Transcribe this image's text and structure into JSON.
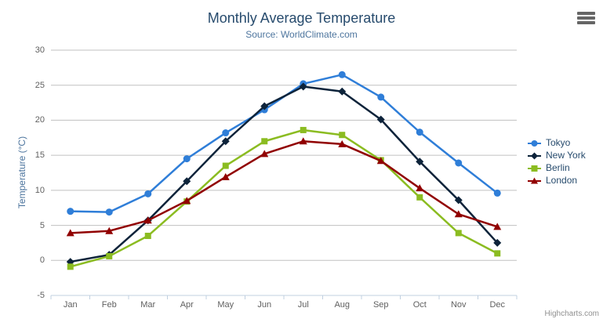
{
  "credits": "Highcharts.com",
  "icons": {
    "context_menu": "hamburger-menu-icon"
  },
  "colors": {
    "title_text": "#274b6d",
    "subtitle_text": "#4d759e",
    "axis_label_text": "#606060",
    "axis_title_text": "#4d759e",
    "legend_text": "#274b6d",
    "gridline": "#c0c0c0",
    "axis_line": "#c0d0e0",
    "credits_text": "#909090",
    "menu_icon": "#666666"
  },
  "chart_data": {
    "type": "line",
    "title": "Monthly Average Temperature",
    "subtitle": "Source: WorldClimate.com",
    "xlabel": "",
    "ylabel": "Temperature (°C)",
    "categories": [
      "Jan",
      "Feb",
      "Mar",
      "Apr",
      "May",
      "Jun",
      "Jul",
      "Aug",
      "Sep",
      "Oct",
      "Nov",
      "Dec"
    ],
    "ylim": [
      -5,
      30
    ],
    "ytick_step": 5,
    "grid": true,
    "legend_position": "right",
    "series": [
      {
        "name": "Tokyo",
        "color": "#2f7ed8",
        "marker": "circle",
        "values": [
          7.0,
          6.9,
          9.5,
          14.5,
          18.2,
          21.5,
          25.2,
          26.5,
          23.3,
          18.3,
          13.9,
          9.6
        ]
      },
      {
        "name": "New York",
        "color": "#0d233a",
        "marker": "diamond",
        "values": [
          -0.2,
          0.8,
          5.7,
          11.3,
          17.0,
          22.0,
          24.8,
          24.1,
          20.1,
          14.1,
          8.6,
          2.5
        ]
      },
      {
        "name": "Berlin",
        "color": "#8bbc21",
        "marker": "square",
        "values": [
          -0.9,
          0.6,
          3.5,
          8.4,
          13.5,
          17.0,
          18.6,
          17.9,
          14.3,
          9.0,
          3.9,
          1.0
        ]
      },
      {
        "name": "London",
        "color": "#910000",
        "marker": "triangle",
        "values": [
          3.9,
          4.2,
          5.7,
          8.5,
          11.9,
          15.2,
          17.0,
          16.6,
          14.2,
          10.3,
          6.6,
          4.8
        ]
      }
    ]
  }
}
